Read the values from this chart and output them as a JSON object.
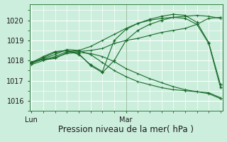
{
  "background_color": "#cceedd",
  "grid_color": "#aaddcc",
  "line_color": "#1a6b2a",
  "xlabel": "Pression niveau de la mer( hPa )",
  "xlabel_fontsize": 8.5,
  "tick_fontsize": 7,
  "ylim": [
    1015.5,
    1020.8
  ],
  "yticks": [
    1016,
    1017,
    1018,
    1019,
    1020
  ],
  "x_lun": 0,
  "x_mar": 24,
  "xlim": [
    -0.5,
    48.5
  ],
  "series": [
    {
      "x": [
        0,
        3,
        6,
        9,
        12,
        15,
        18,
        21,
        24,
        27,
        30,
        33,
        36,
        39,
        42,
        45,
        48
      ],
      "y": [
        1017.95,
        1018.05,
        1018.1,
        1018.4,
        1018.45,
        1018.5,
        1018.6,
        1018.85,
        1019.0,
        1019.1,
        1019.25,
        1019.4,
        1019.5,
        1019.6,
        1019.8,
        1020.1,
        1020.15
      ],
      "marker": false
    },
    {
      "x": [
        0,
        3,
        6,
        9,
        12,
        15,
        18,
        21,
        24,
        27,
        30,
        33,
        36,
        39,
        42,
        45,
        48
      ],
      "y": [
        1017.9,
        1018.05,
        1018.2,
        1018.45,
        1018.5,
        1018.7,
        1019.0,
        1019.3,
        1019.6,
        1019.85,
        1020.0,
        1020.1,
        1020.15,
        1020.2,
        1020.25,
        1020.2,
        1020.1
      ],
      "marker": false
    },
    {
      "x": [
        0,
        3,
        6,
        9,
        12,
        15,
        18,
        21,
        24,
        27,
        30,
        33,
        36,
        39,
        42,
        45,
        48
      ],
      "y": [
        1017.8,
        1018.0,
        1018.15,
        1018.35,
        1018.4,
        1018.35,
        1018.2,
        1017.95,
        1017.6,
        1017.35,
        1017.1,
        1016.9,
        1016.7,
        1016.55,
        1016.45,
        1016.35,
        1016.1
      ],
      "marker": false
    },
    {
      "x": [
        0,
        3,
        6,
        9,
        12,
        15,
        18,
        21,
        24,
        27,
        30,
        33,
        36,
        39,
        42,
        45,
        48
      ],
      "y": [
        1017.85,
        1018.1,
        1018.3,
        1018.55,
        1018.5,
        1018.3,
        1017.9,
        1017.5,
        1017.2,
        1016.95,
        1016.8,
        1016.65,
        1016.55,
        1016.5,
        1016.45,
        1016.4,
        1016.15
      ],
      "marker": false
    },
    {
      "x": [
        0,
        3,
        6,
        9,
        12,
        15,
        18,
        21,
        24,
        27,
        30,
        33,
        36,
        39,
        42,
        45,
        48
      ],
      "y": [
        1017.9,
        1018.2,
        1018.45,
        1018.5,
        1018.3,
        1017.8,
        1017.45,
        1019.0,
        1019.55,
        1019.85,
        1020.05,
        1020.2,
        1020.3,
        1020.25,
        1019.9,
        1018.9,
        1016.8
      ],
      "marker": true
    },
    {
      "x": [
        0,
        3,
        6,
        9,
        12,
        15,
        18,
        21,
        24,
        27,
        30,
        33,
        36,
        39,
        42,
        45,
        48
      ],
      "y": [
        1017.85,
        1018.15,
        1018.4,
        1018.5,
        1018.35,
        1017.75,
        1017.4,
        1018.0,
        1019.0,
        1019.5,
        1019.8,
        1020.0,
        1020.15,
        1020.1,
        1019.8,
        1018.85,
        1016.65
      ],
      "marker": true
    }
  ],
  "linewidth": 0.8,
  "marker_size": 3.5
}
